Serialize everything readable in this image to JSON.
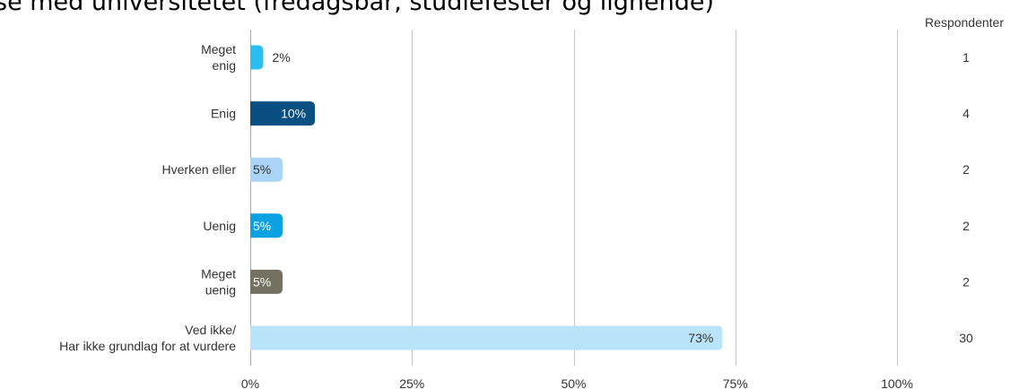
{
  "header": {
    "title": "se med universitetet (fredagsbar, studiefester og lignende)",
    "respondents_label": "Respondenter"
  },
  "chart_data": {
    "type": "bar",
    "orientation": "horizontal",
    "title": "se med universitetet (fredagsbar, studiefester og lignende)",
    "categories": [
      [
        "Meget",
        "enig"
      ],
      [
        "Enig"
      ],
      [
        "Hverken eller"
      ],
      [
        "Uenig"
      ],
      [
        "Meget",
        "uenig"
      ],
      [
        "Ved ikke/",
        "Har ikke grundlag for at vurdere"
      ]
    ],
    "values": [
      2,
      10,
      5,
      5,
      5,
      73
    ],
    "value_labels": [
      "2%",
      "10%",
      "5%",
      "5%",
      "5%",
      "73%"
    ],
    "respondents": [
      1,
      4,
      2,
      2,
      2,
      30
    ],
    "colors": [
      "#29c0f0",
      "#0a4f82",
      "#a9d4f5",
      "#0ca1e0",
      "#757160",
      "#b9e3f8"
    ],
    "label_colors": [
      "#333333",
      "#ffffff",
      "#333333",
      "#ffffff",
      "#ffffff",
      "#333333"
    ],
    "xlim": [
      0,
      100
    ],
    "xticks": [
      0,
      25,
      50,
      75,
      100
    ],
    "xtick_labels": [
      "0%",
      "25%",
      "50%",
      "75%",
      "100%"
    ],
    "grid": true
  }
}
